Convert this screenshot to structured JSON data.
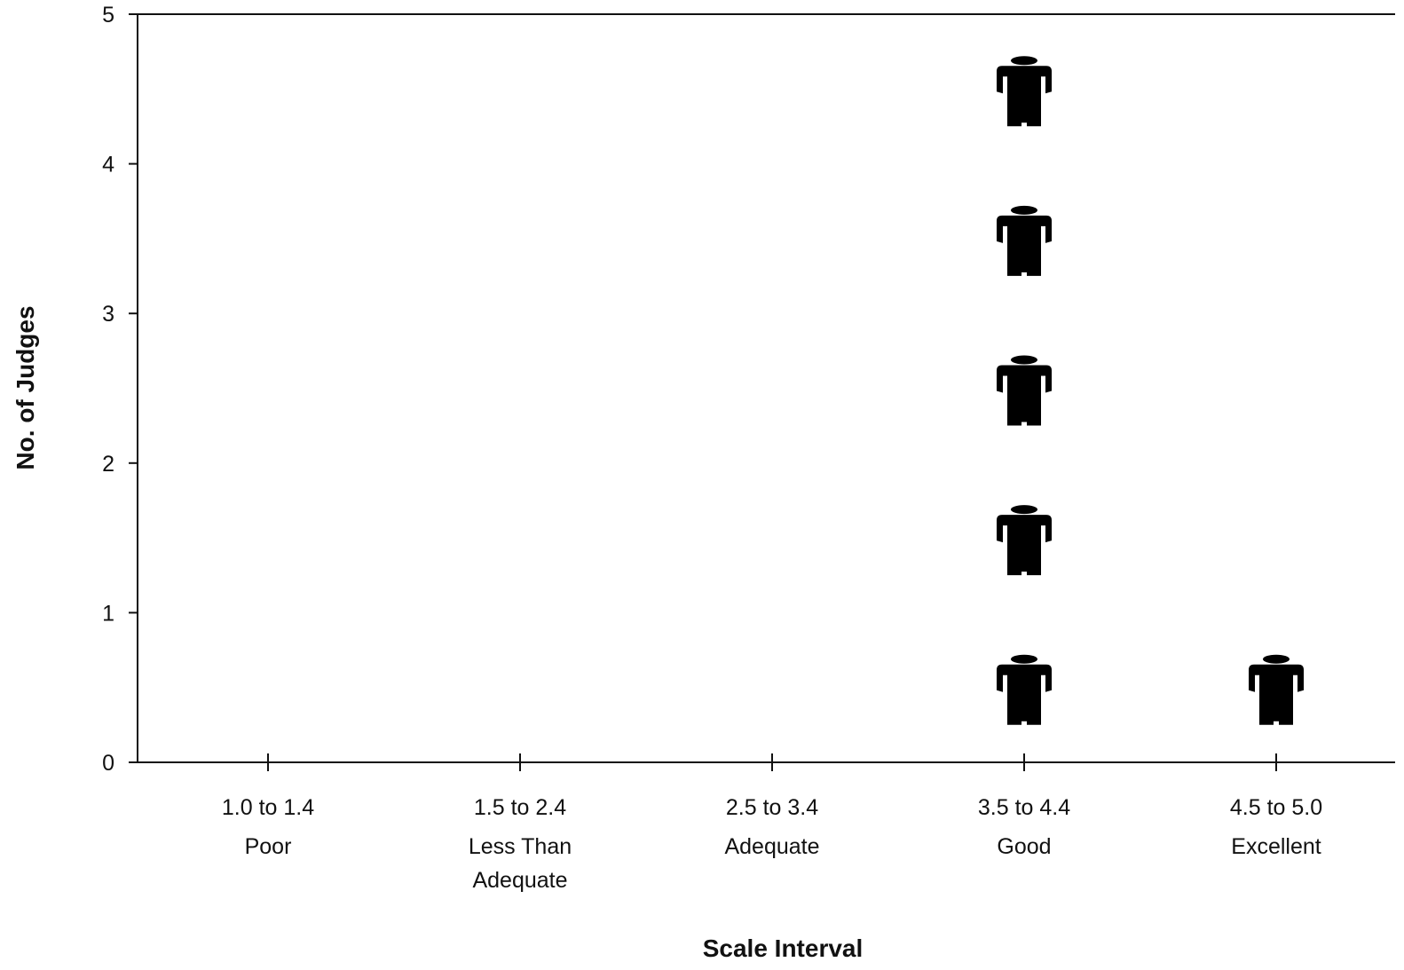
{
  "chart_data": {
    "type": "scatter",
    "title": "",
    "xlabel": "Scale Interval",
    "ylabel": "No. of Judges",
    "ylim": [
      0,
      5
    ],
    "yticks": [
      "0",
      "1",
      "2",
      "3",
      "4",
      "5"
    ],
    "categories": [
      {
        "range": "1.0 to 1.4",
        "label": [
          "Poor"
        ],
        "count": 0
      },
      {
        "range": "1.5 to 2.4",
        "label": [
          "Less Than",
          "Adequate"
        ],
        "count": 0
      },
      {
        "range": "2.5 to 3.4",
        "label": [
          "Adequate"
        ],
        "count": 0
      },
      {
        "range": "3.5 to 4.4",
        "label": [
          "Good"
        ],
        "count": 5
      },
      {
        "range": "4.5 to 5.0",
        "label": [
          "Excellent"
        ],
        "count": 1
      }
    ],
    "marker": "person-icon",
    "grid": false,
    "legend": "none"
  }
}
